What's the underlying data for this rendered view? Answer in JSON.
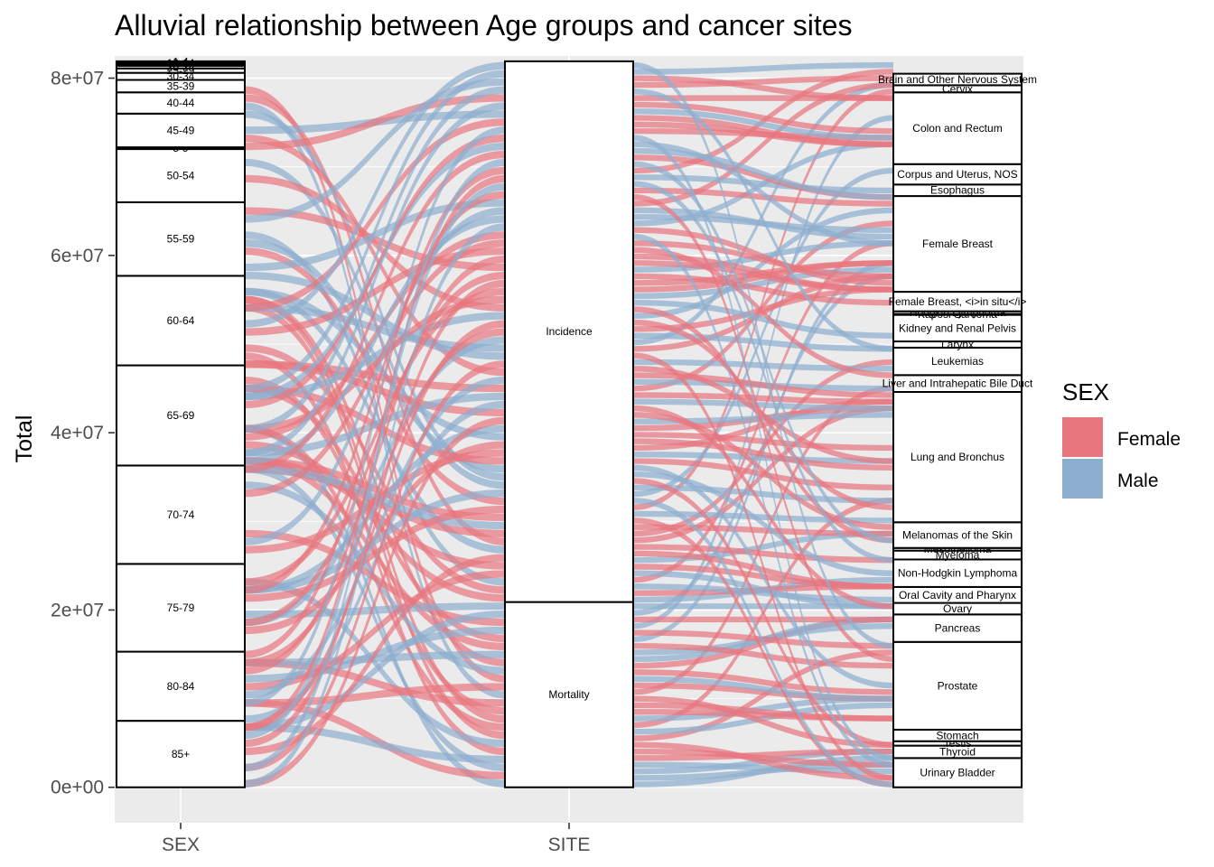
{
  "chart_data": {
    "type": "alluvial",
    "title": "Alluvial relationship between Age groups and cancer sites",
    "ylabel": "Total",
    "ylim": [
      -4000000,
      82500000
    ],
    "y_ticks": [
      0,
      20000000,
      40000000,
      60000000,
      80000000
    ],
    "y_tick_labels": [
      "0e+00",
      "2e+07",
      "4e+07",
      "6e+07",
      "8e+07"
    ],
    "axes": [
      "SEX",
      "SITE"
    ],
    "grid": true,
    "legend": {
      "title": "SEX",
      "placement": "right",
      "entries": [
        {
          "name": "Female",
          "color": "#E8767F"
        },
        {
          "name": "Male",
          "color": "#8DAECF"
        }
      ]
    },
    "strata": [
      {
        "axis": 0,
        "segments": [
          {
            "label": "85+",
            "value": 7500000
          },
          {
            "label": "80-84",
            "value": 7800000
          },
          {
            "label": "75-79",
            "value": 9900000
          },
          {
            "label": "70-74",
            "value": 11100000
          },
          {
            "label": "65-69",
            "value": 11300000
          },
          {
            "label": "60-64",
            "value": 10100000
          },
          {
            "label": "55-59",
            "value": 8300000
          },
          {
            "label": "50-54",
            "value": 6000000
          },
          {
            "label": "5-9",
            "value": 200000
          },
          {
            "label": "45-49",
            "value": 3800000
          },
          {
            "label": "40-44",
            "value": 2400000
          },
          {
            "label": "35-39",
            "value": 1400000
          },
          {
            "label": "30-34",
            "value": 800000
          },
          {
            "label": "25-29",
            "value": 500000
          },
          {
            "label": "20-24",
            "value": 300000
          },
          {
            "label": "15-19",
            "value": 200000
          },
          {
            "label": "10-14",
            "value": 150000
          },
          {
            "label": "1-4",
            "value": 150000
          }
        ]
      },
      {
        "axis": 1,
        "segments": [
          {
            "label": "Mortality",
            "value": 20900000
          },
          {
            "label": "Incidence",
            "value": 61000000
          }
        ]
      },
      {
        "axis": 2,
        "segments": [
          {
            "label": "Urinary Bladder",
            "value": 3300000
          },
          {
            "label": "Thyroid",
            "value": 1400000
          },
          {
            "label": "Testis",
            "value": 500000
          },
          {
            "label": "Stomach",
            "value": 1300000
          },
          {
            "label": "Prostate",
            "value": 9900000
          },
          {
            "label": "Pancreas",
            "value": 3100000
          },
          {
            "label": "Ovary",
            "value": 1300000
          },
          {
            "label": "Oral Cavity and Pharynx",
            "value": 1800000
          },
          {
            "label": "Non-Hodgkin Lymphoma",
            "value": 3100000
          },
          {
            "label": "Myeloma",
            "value": 1000000
          },
          {
            "label": "Mesothelioma",
            "value": 300000
          },
          {
            "label": "Melanomas of the Skin",
            "value": 2900000
          },
          {
            "label": "Lung and Bronchus",
            "value": 14700000
          },
          {
            "label": "Liver and Intrahepatic Bile Duct",
            "value": 1900000
          },
          {
            "label": "Leukemias",
            "value": 3100000
          },
          {
            "label": "Larynx",
            "value": 700000
          },
          {
            "label": "Kidney and Renal Pelvis",
            "value": 3000000
          },
          {
            "label": "Kaposi Sarcoma",
            "value": 100000
          },
          {
            "label": "Hodgkin Lymphoma",
            "value": 300000
          },
          {
            "label": "Female Breast, <i>in situ</i>",
            "value": 2200000
          },
          {
            "label": "Female Breast",
            "value": 10800000
          },
          {
            "label": "Esophagus",
            "value": 1300000
          },
          {
            "label": "Corpus and Uterus, NOS",
            "value": 2300000
          },
          {
            "label": "Colon and Rectum",
            "value": 8100000
          },
          {
            "label": "Cervix",
            "value": 800000
          },
          {
            "label": "Brain and Other Nervous System",
            "value": 1300000
          }
        ]
      }
    ]
  }
}
